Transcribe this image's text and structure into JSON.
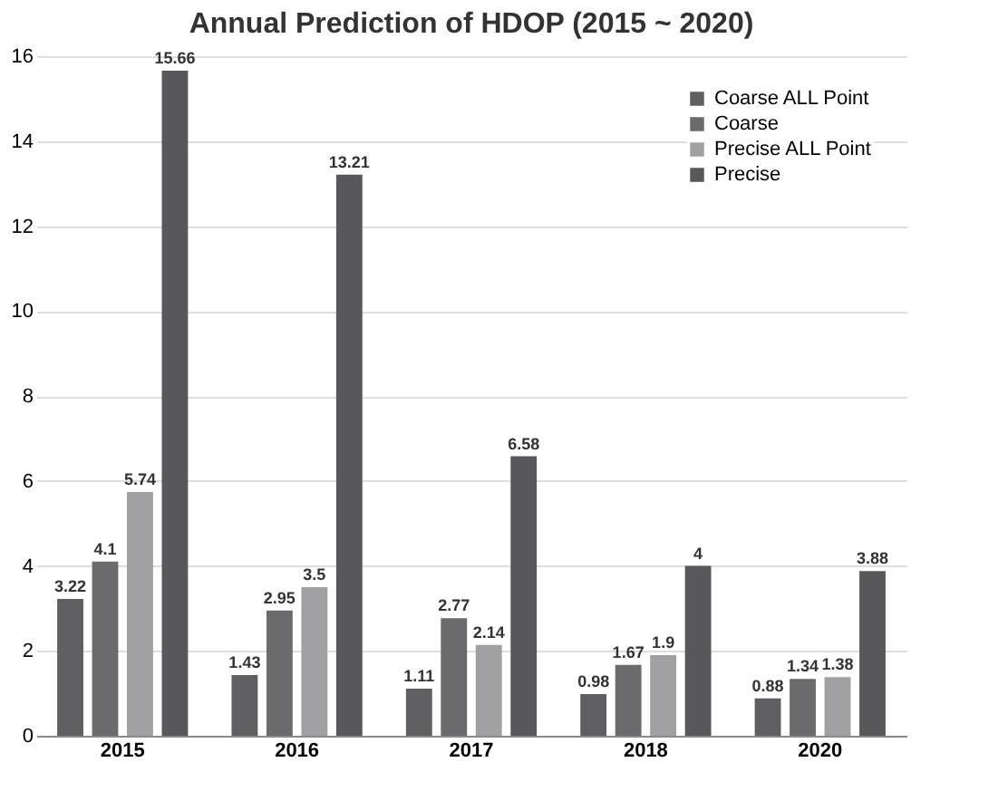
{
  "chart_data": {
    "type": "bar",
    "title": "Annual Prediction of HDOP (2015 ~ 2020)",
    "categories": [
      "2015",
      "2016",
      "2017",
      "2018",
      "2020"
    ],
    "series": [
      {
        "name": "Coarse ALL Point",
        "color": "#5f5f61",
        "values": [
          3.22,
          1.43,
          1.11,
          0.98,
          0.88
        ]
      },
      {
        "name": "Coarse",
        "color": "#6b6b6d",
        "values": [
          4.1,
          2.95,
          2.77,
          1.67,
          1.34
        ]
      },
      {
        "name": "Precise ALL Point",
        "color": "#a0a0a2",
        "values": [
          5.74,
          3.5,
          2.14,
          1.9,
          1.38
        ]
      },
      {
        "name": "Precise",
        "color": "#58585a",
        "values": [
          15.66,
          13.21,
          6.58,
          4,
          3.88
        ]
      }
    ],
    "ylim": [
      0,
      16
    ],
    "yticks": [
      0,
      2,
      4,
      6,
      8,
      10,
      12,
      14,
      16
    ],
    "grid": "y",
    "legend": "top right",
    "data_labels": true
  }
}
